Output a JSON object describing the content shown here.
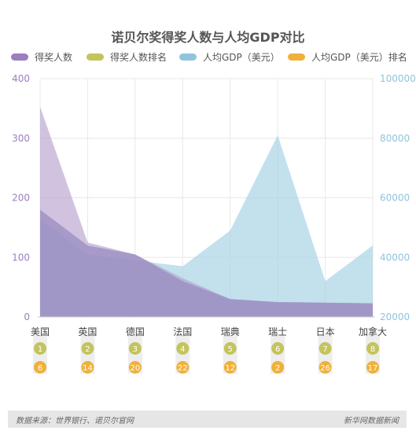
{
  "chart_data": {
    "type": "area",
    "title": "诺贝尔奖得奖人数与人均GDP对比",
    "categories": [
      "美国",
      "英国",
      "德国",
      "法国",
      "瑞典",
      "瑞士",
      "日本",
      "加拿大"
    ],
    "series": [
      {
        "name": "得奖人数",
        "axis": "left",
        "values": [
          353,
          125,
          105,
          65,
          30,
          25,
          24,
          23
        ],
        "color": "#9b7fbf"
      },
      {
        "name": "得奖人数排名",
        "type": "badge",
        "values": [
          "1",
          "2",
          "3",
          "4",
          "5",
          "6",
          "7",
          "8"
        ],
        "color": "#c3c45c"
      },
      {
        "name": "人均GDP（美元）",
        "axis": "right",
        "values": [
          53000,
          41000,
          39000,
          37000,
          49000,
          81000,
          32000,
          44000
        ],
        "color": "#8fc5dc"
      },
      {
        "name": "人均GDP（美元）排名",
        "type": "badge",
        "values": [
          "6",
          "14",
          "20",
          "22",
          "12",
          "2",
          "26",
          "17"
        ],
        "color": "#f0b13a"
      }
    ],
    "overlay_line": {
      "axis": "left",
      "values": [
        180,
        120,
        105,
        60,
        30,
        25,
        24,
        23
      ]
    },
    "y_left": {
      "ticks": [
        "0",
        "100",
        "200",
        "300",
        "400"
      ],
      "min": 0,
      "max": 400,
      "color": "#9b7fbf"
    },
    "y_right": {
      "ticks": [
        "20000",
        "40000",
        "60000",
        "80000",
        "100000"
      ],
      "min": 20000,
      "max": 100000,
      "color": "#8fc5dc"
    },
    "grid": true,
    "legend_position": "top"
  },
  "footer": {
    "source": "数据来源：世界银行、诺贝尔官网",
    "brand": "新华网数据新闻"
  }
}
